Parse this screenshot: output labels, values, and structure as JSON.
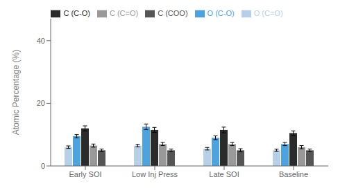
{
  "chart_data": {
    "type": "bar",
    "ylabel": "Atomic Percentage (%)",
    "categories": [
      "Early SOI",
      "Low Inj Press",
      "Late SOI",
      "Baseline"
    ],
    "series": [
      {
        "name": "O (C=O)",
        "color": "#b8cfe8",
        "values": [
          6.0,
          6.5,
          5.5,
          5.0
        ],
        "errors": [
          0.4,
          0.4,
          0.4,
          0.35
        ]
      },
      {
        "name": "O (C-O)",
        "color": "#4ca3dd",
        "values": [
          9.5,
          12.5,
          9.0,
          7.0
        ],
        "errors": [
          0.5,
          0.9,
          0.6,
          0.5
        ]
      },
      {
        "name": "C (C-O)",
        "color": "#2b2b2b",
        "values": [
          12.0,
          11.5,
          11.5,
          10.5
        ],
        "errors": [
          0.8,
          0.8,
          0.9,
          0.7
        ]
      },
      {
        "name": "C (C=O)",
        "color": "#999999",
        "values": [
          6.5,
          7.0,
          7.0,
          6.0
        ],
        "errors": [
          0.5,
          0.5,
          0.5,
          0.5
        ]
      },
      {
        "name": "C (COO)",
        "color": "#555555",
        "values": [
          5.0,
          5.0,
          5.0,
          5.0
        ],
        "errors": [
          0.4,
          0.4,
          0.5,
          0.4
        ]
      }
    ],
    "ylim": [
      0,
      47
    ],
    "yticks": [
      0,
      20,
      40
    ],
    "grid": false,
    "legend": "top"
  }
}
